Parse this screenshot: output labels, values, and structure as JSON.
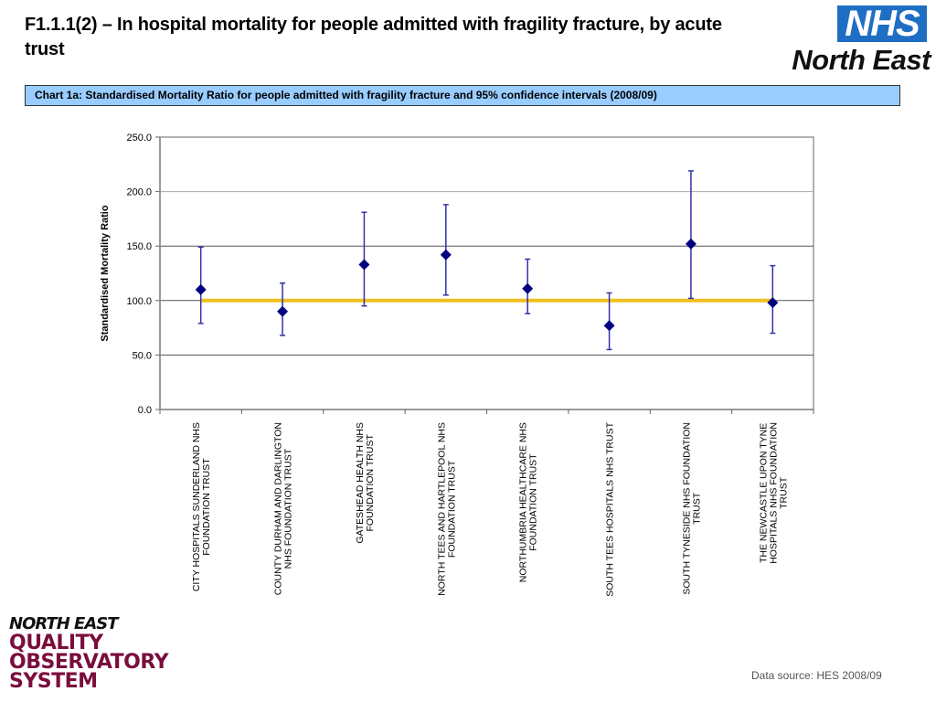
{
  "header": {
    "title": "F1.1.1(2) – In hospital mortality for people admitted with fragility fracture, by acute trust",
    "nhs_logo_text": "NHS",
    "region_logo_text": "North East"
  },
  "chart_banner": "Chart 1a: Standardised Mortality Ratio for people admitted with fragility fracture and 95% confidence intervals (2008/09)",
  "footer": {
    "logo_lines": [
      "NORTH EAST",
      "QUALITY",
      "OBSERVATORY",
      "SYSTEM"
    ],
    "data_source": "Data source: HES 2008/09"
  },
  "colors": {
    "marker": "#000080",
    "error_bar": "#3333aa",
    "reference_line": "#f0c020",
    "banner_bg": "#99ccff",
    "nhs_blue": "#1e6fc4",
    "qos_maroon": "#7a0d3c"
  },
  "chart_data": {
    "type": "scatter",
    "title": "Chart 1a: Standardised Mortality Ratio for people admitted with fragility fracture and 95% confidence intervals (2008/09)",
    "xlabel": "",
    "ylabel": "Standardised Mortality Ratio",
    "ylim": [
      0,
      250
    ],
    "yticks": [
      "0.0",
      "50.0",
      "100.0",
      "150.0",
      "200.0",
      "250.0"
    ],
    "ytick_values": [
      0,
      50,
      100,
      150,
      200,
      250
    ],
    "grid": true,
    "reference_line": 100,
    "categories": [
      "CITY HOSPITALS SUNDERLAND NHS FOUNDATION TRUST",
      "COUNTY DURHAM AND DARLINGTON NHS FOUNDATION TRUST",
      "GATESHEAD HEALTH NHS FOUNDATION TRUST",
      "NORTH TEES AND HARTLEPOOL NHS FOUNDATION TRUST",
      "NORTHUMBRIA HEALTHCARE NHS FOUNDATION TRUST",
      "SOUTH TEES HOSPITALS NHS TRUST",
      "SOUTH TYNESIDE NHS FOUNDATION TRUST",
      "THE NEWCASTLE UPON TYNE HOSPITALS NHS FOUNDATION TRUST"
    ],
    "category_label_lines": [
      [
        "CITY HOSPITALS SUNDERLAND NHS",
        "FOUNDATION TRUST"
      ],
      [
        "COUNTY DURHAM AND DARLINGTON",
        "NHS FOUNDATION TRUST"
      ],
      [
        "GATESHEAD HEALTH NHS",
        "FOUNDATION TRUST"
      ],
      [
        "NORTH TEES AND HARTLEPOOL NHS",
        "FOUNDATION TRUST"
      ],
      [
        "NORTHUMBRIA HEALTHCARE NHS",
        "FOUNDATION TRUST"
      ],
      [
        "SOUTH TEES HOSPITALS NHS TRUST"
      ],
      [
        "SOUTH TYNESIDE NHS FOUNDATION",
        "TRUST"
      ],
      [
        "THE NEWCASTLE UPON TYNE",
        "HOSPITALS NHS FOUNDATION",
        "TRUST"
      ]
    ],
    "series": [
      {
        "name": "SMR",
        "values": [
          110,
          90,
          133,
          142,
          111,
          77,
          152,
          98
        ]
      },
      {
        "name": "Lower 95% CI",
        "values": [
          79,
          68,
          95,
          105,
          88,
          55,
          102,
          70
        ]
      },
      {
        "name": "Upper 95% CI",
        "values": [
          149,
          116,
          181,
          188,
          138,
          107,
          219,
          132
        ]
      }
    ],
    "legend": "none"
  }
}
